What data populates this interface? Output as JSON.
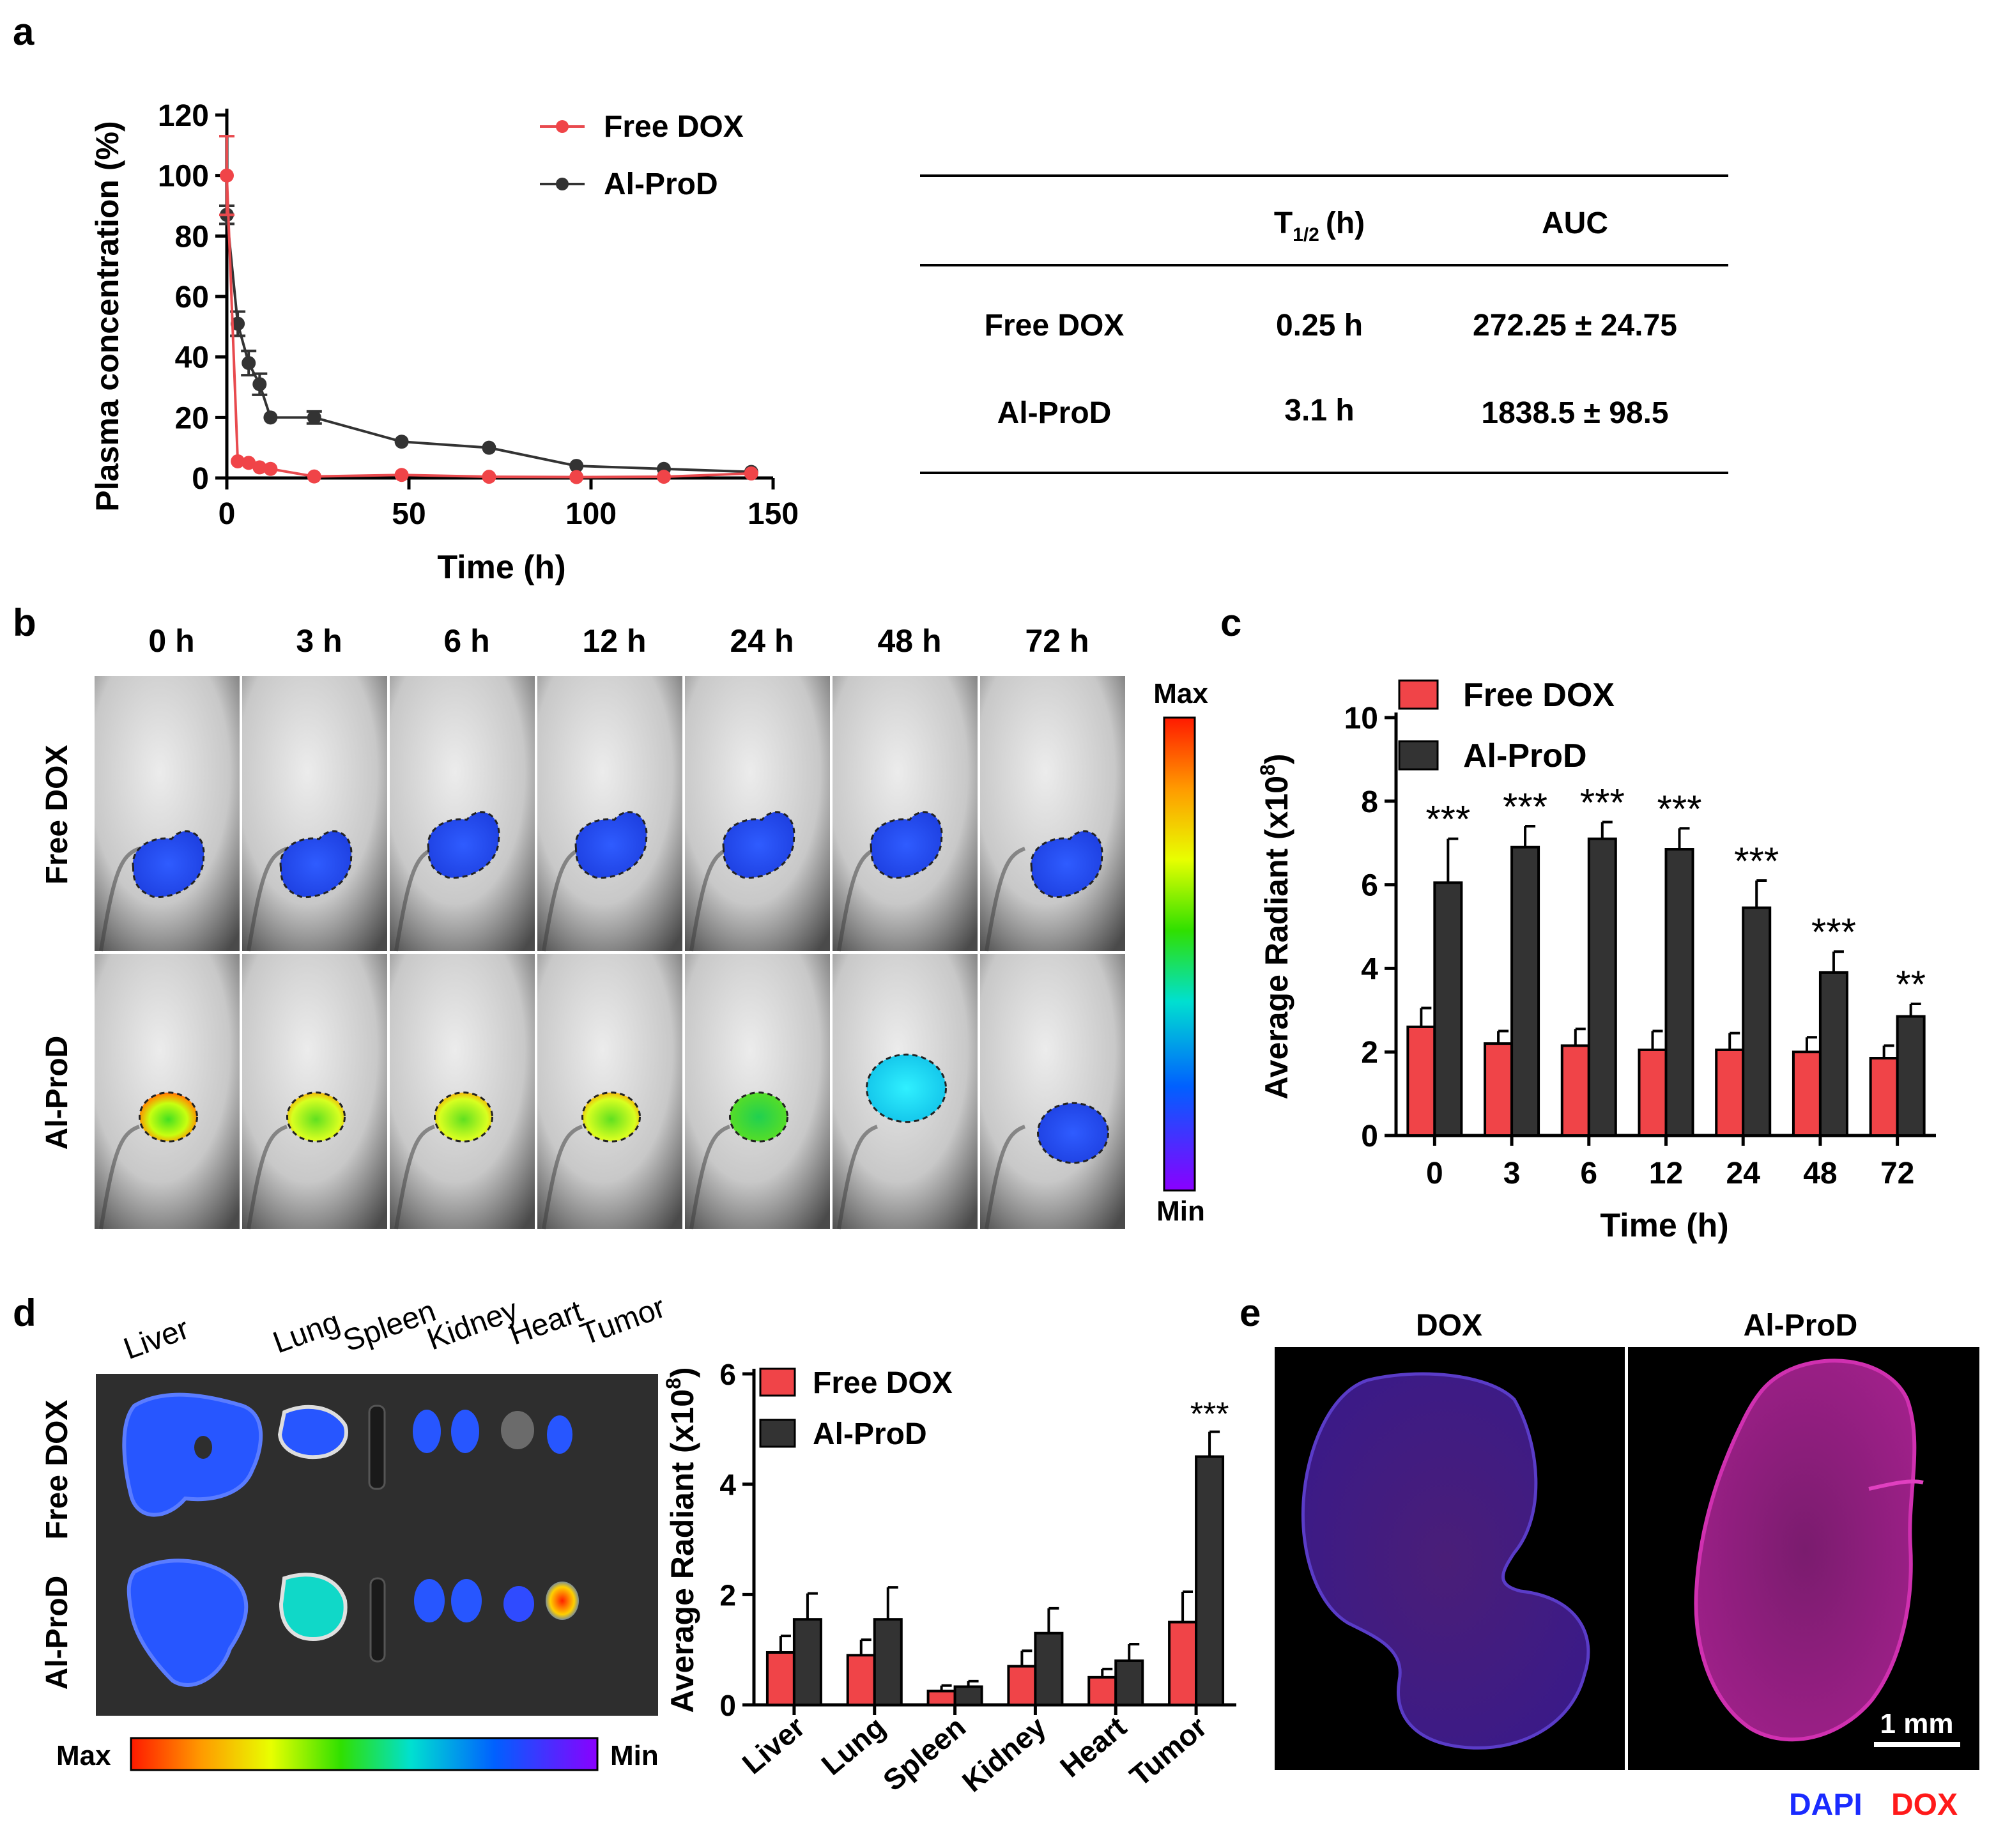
{
  "panel_letters": [
    "a",
    "b",
    "c",
    "d",
    "e"
  ],
  "colors": {
    "free": "#f04448",
    "alprod": "#333333",
    "free_line": "#e84a4e"
  },
  "panel_a_table": {
    "headers": [
      "",
      "T1/2 (h)",
      "AUC"
    ],
    "header_t": "T",
    "header_sub": "1/2",
    "header_unit": "(h)",
    "header_auc": "AUC",
    "rows": [
      {
        "name": "Free DOX",
        "t_half": "0.25 h",
        "auc": "272.25 ± 24.75"
      },
      {
        "name": "Al-ProD",
        "t_half": "3.1 h",
        "auc": "1838.5 ± 98.5"
      }
    ]
  },
  "panel_b": {
    "times": [
      "0 h",
      "3 h",
      "6 h",
      "12 h",
      "24 h",
      "48 h",
      "72 h"
    ],
    "row_labels": [
      "Free DOX",
      "Al-ProD"
    ],
    "scale_max": "Max",
    "scale_min": "Min"
  },
  "panel_d_image": {
    "organs": [
      "Liver",
      "Lung",
      "Spleen",
      "Kidney",
      "Heart",
      "Tumor"
    ],
    "row_labels": [
      "Free DOX",
      "Al-ProD"
    ],
    "scale_max": "Max",
    "scale_min": "Min"
  },
  "panel_e": {
    "labels": [
      "DOX",
      "Al-ProD"
    ],
    "scale_bar": "1 mm",
    "stain_dapi": "DAPI",
    "stain_dox": "DOX"
  },
  "chart_data": [
    {
      "id": "a",
      "type": "line",
      "xlabel": "Time (h)",
      "ylabel": "Plasma concentration (%)",
      "xlim": [
        0,
        150
      ],
      "ylim": [
        0,
        120
      ],
      "xticks": [
        0,
        50,
        100,
        150
      ],
      "yticks": [
        0,
        20,
        40,
        60,
        80,
        100,
        120
      ],
      "legend": [
        "Free DOX",
        "Al-ProD"
      ],
      "series": [
        {
          "name": "Free DOX",
          "x": [
            0,
            3,
            6,
            9,
            12,
            24,
            48,
            72,
            96,
            120,
            144
          ],
          "y": [
            100,
            5.5,
            5,
            3.5,
            3,
            0.5,
            1,
            0.4,
            0.3,
            0.4,
            1.5
          ],
          "err": [
            13,
            0,
            0,
            0,
            0,
            0,
            0,
            0,
            0,
            0,
            0
          ]
        },
        {
          "name": "Al-ProD",
          "x": [
            0,
            3,
            6,
            9,
            12,
            24,
            48,
            72,
            96,
            120,
            144
          ],
          "y": [
            87,
            51,
            38,
            31,
            20,
            20,
            12,
            10,
            4,
            3,
            2
          ],
          "err": [
            3,
            4,
            4,
            3.5,
            0,
            2,
            0,
            0,
            0,
            0,
            0
          ]
        }
      ]
    },
    {
      "id": "c",
      "type": "bar",
      "xlabel": "Time (h)",
      "ylabel": "Average Radiant (x10",
      "ylabel_exp": "8",
      "ylabel_close": ")",
      "categories": [
        "0",
        "3",
        "6",
        "12",
        "24",
        "48",
        "72"
      ],
      "ylim": [
        0,
        10
      ],
      "yticks": [
        0,
        2,
        4,
        6,
        8,
        10
      ],
      "legend": [
        "Free DOX",
        "Al-ProD"
      ],
      "series": [
        {
          "name": "Free DOX",
          "values": [
            2.6,
            2.2,
            2.15,
            2.05,
            2.05,
            2.0,
            1.85
          ],
          "err": [
            0.45,
            0.3,
            0.4,
            0.45,
            0.4,
            0.35,
            0.3
          ]
        },
        {
          "name": "Al-ProD",
          "values": [
            6.05,
            6.9,
            7.1,
            6.85,
            5.45,
            3.9,
            2.85
          ],
          "err": [
            1.05,
            0.5,
            0.4,
            0.5,
            0.65,
            0.5,
            0.3
          ]
        }
      ],
      "significance": [
        "***",
        "***",
        "***",
        "***",
        "***",
        "***",
        "**"
      ]
    },
    {
      "id": "d",
      "type": "bar",
      "xlabel": "",
      "ylabel": "Average Radiant (x10",
      "ylabel_exp": "8",
      "ylabel_close": ")",
      "categories": [
        "Liver",
        "Lung",
        "Spleen",
        "Kidney",
        "Heart",
        "Tumor"
      ],
      "ylim": [
        0,
        6
      ],
      "yticks": [
        0,
        2,
        4,
        6
      ],
      "legend": [
        "Free DOX",
        "Al-ProD"
      ],
      "series": [
        {
          "name": "Free DOX",
          "values": [
            0.95,
            0.9,
            0.25,
            0.7,
            0.5,
            1.5
          ],
          "err": [
            0.3,
            0.28,
            0.1,
            0.28,
            0.15,
            0.55
          ]
        },
        {
          "name": "Al-ProD",
          "values": [
            1.55,
            1.55,
            0.33,
            1.3,
            0.8,
            4.5
          ],
          "err": [
            0.47,
            0.58,
            0.1,
            0.45,
            0.3,
            0.45
          ]
        }
      ],
      "significance": [
        "",
        "",
        "",
        "",
        "",
        "***"
      ]
    }
  ]
}
